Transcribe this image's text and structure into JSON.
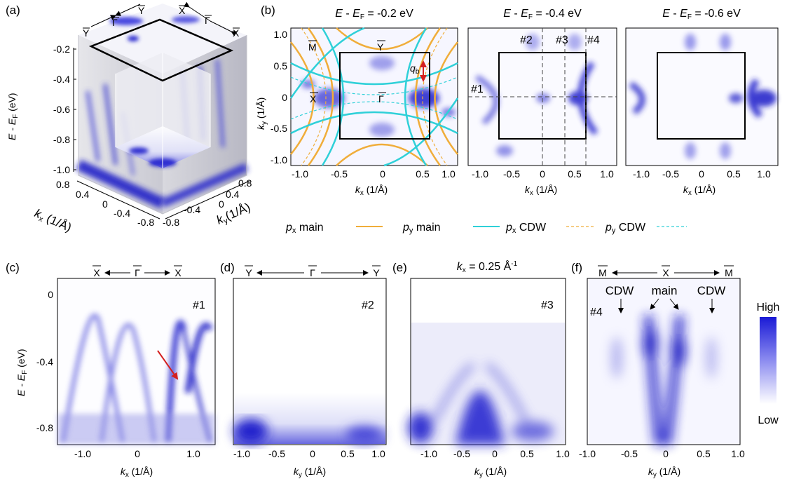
{
  "panel_labels": [
    "(a)",
    "(b)",
    "(c)",
    "(d)",
    "(e)",
    "(f)"
  ],
  "panel_a": {
    "axis_label_energy": "E - E",
    "axis_label_energy_sub": "F",
    "axis_label_energy_unit": " (eV)",
    "energy_ticks": [
      "-0.2",
      "-0.4",
      "-0.6",
      "-0.8",
      "-1.0"
    ],
    "kx_ticks": [
      "0.8",
      "0.4",
      "0",
      "-0.4",
      "-0.8"
    ],
    "ky_ticks": [
      "0.8",
      "0.4",
      "0",
      "-0.4",
      "-0.8"
    ],
    "kx_label_k": "k",
    "kx_label_sub": "x",
    "kx_label_unit": " (1/Å)",
    "ky_label_k": "k",
    "ky_label_sub": "y",
    "ky_label_unit": "(1/Å)",
    "hsp_left": [
      "Y",
      "Γ",
      "Y"
    ],
    "hsp_right": [
      "X",
      "Γ",
      "X"
    ]
  },
  "panel_b": {
    "titles": [
      "-0.2 eV",
      "-0.4 eV",
      "-0.6 eV"
    ],
    "title_prefix_E": "E",
    "title_prefix_sub": "F",
    "x_ticks": [
      "-1.0",
      "-0.5",
      "0",
      "0.5",
      "1.0"
    ],
    "y_ticks": [
      "1.0",
      "0.5",
      "0",
      "-0.5",
      "-1.0"
    ],
    "x_label_k": "k",
    "x_label_sub": "x",
    "x_label_unit": " (1/Å)",
    "y_label_k": "k",
    "y_label_sub": "y",
    "y_label_unit": " (1/Å)",
    "hsp": [
      "M",
      "Y",
      "X",
      "Γ"
    ],
    "qb_label": "q",
    "qb_sub": "b",
    "cut_labels": [
      "#1",
      "#2",
      "#3",
      "#4"
    ]
  },
  "legend": [
    {
      "k": "p",
      "sub": "x",
      "text": " main",
      "color": "#f0ad3a",
      "dash": false
    },
    {
      "k": "p",
      "sub": "y",
      "text": " main",
      "color": "#2fd0d8",
      "dash": false
    },
    {
      "k": "p",
      "sub": "x",
      "text": " CDW",
      "color": "#f0ad3a",
      "dash": true
    },
    {
      "k": "p",
      "sub": "y",
      "text": " CDW",
      "color": "#2fd0d8",
      "dash": true
    }
  ],
  "panel_c": {
    "hsp": [
      "X",
      "Γ",
      "X"
    ],
    "cut": "#1",
    "x_ticks": [
      "-1.0",
      "0",
      "1.0"
    ],
    "y_ticks": [
      "0",
      "-0.4",
      "-0.8"
    ],
    "x_label_k": "k",
    "x_label_sub": "x",
    "x_label_unit": " (1/Å)",
    "y_label": "E - E",
    "y_label_sub": "F",
    "y_label_unit": " (eV)"
  },
  "panel_d": {
    "hsp": [
      "Y",
      "Γ",
      "Y"
    ],
    "cut": "#2",
    "x_ticks": [
      "-1.0",
      "-0.5",
      "0",
      "0.5",
      "1.0"
    ],
    "x_label_k": "k",
    "x_label_sub": "y",
    "x_label_unit": " (1/Å)"
  },
  "panel_e": {
    "title_k": "k",
    "title_sub": "x",
    "title_text": " = 0.25 Å",
    "title_sup": "-1",
    "cut": "#3",
    "x_ticks": [
      "-1.0",
      "-0.5",
      "0",
      "0.5",
      "1.0"
    ],
    "x_label_k": "k",
    "x_label_sub": "y",
    "x_label_unit": " (1/Å)"
  },
  "panel_f": {
    "hsp": [
      "M",
      "X",
      "M"
    ],
    "cut": "#4",
    "annotations": [
      "CDW",
      "main",
      "CDW"
    ],
    "x_ticks": [
      "-1.0",
      "-0.5",
      "0",
      "0.5",
      "1.0"
    ],
    "x_label_k": "k",
    "x_label_sub": "y",
    "x_label_unit": " (1/Å)"
  },
  "colorbar": {
    "high": "High",
    "low": "Low",
    "color_high": "#1a1ad6",
    "color_low": "#ffffff"
  },
  "colors": {
    "intensity": "#2020d0",
    "arrow": "#d42020",
    "px": "#f0ad3a",
    "py": "#2fd0d8"
  }
}
